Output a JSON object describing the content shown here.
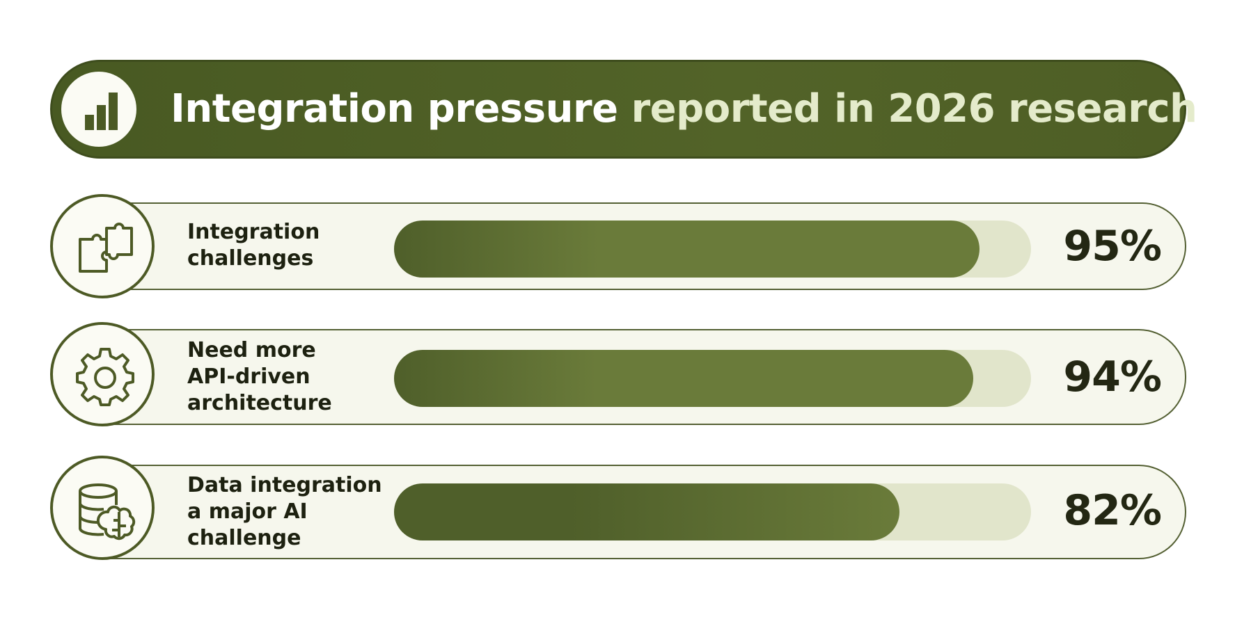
{
  "header": {
    "title_part1": "Integration pressure ",
    "title_part2": "reported in 2026 research",
    "icon": "bar-chart-icon"
  },
  "colors": {
    "header_background": "#4b5a24",
    "title_main": "#ffffff",
    "title_accent": "#e4ebcb",
    "bar_fill": "#6a7b3a",
    "bar_fill_dark": "#4f5f2a",
    "bar_track": "#e1e5cb",
    "row_background": "#f6f7ed"
  },
  "chart_data": {
    "type": "bar",
    "orientation": "horizontal",
    "title": "Integration pressure reported in 2026 research",
    "categories": [
      "Integration challenges",
      "Need more API-driven architecture",
      "Data integration a major AI challenge"
    ],
    "values": [
      95,
      94,
      82
    ],
    "unit": "%",
    "xlim": [
      0,
      100
    ],
    "grid": false,
    "legend": "none"
  },
  "rows": [
    {
      "label_lines": [
        "Integration",
        "challenges"
      ],
      "value": 95,
      "value_label": "95%",
      "icon": "puzzle-icon"
    },
    {
      "label_lines": [
        "Need more",
        "API-driven",
        "architecture"
      ],
      "value": 94,
      "value_label": "94%",
      "icon": "gear-icon"
    },
    {
      "label_lines": [
        "Data integration",
        "a major AI",
        "challenge"
      ],
      "value": 82,
      "value_label": "82%",
      "icon": "database-brain-icon"
    }
  ]
}
